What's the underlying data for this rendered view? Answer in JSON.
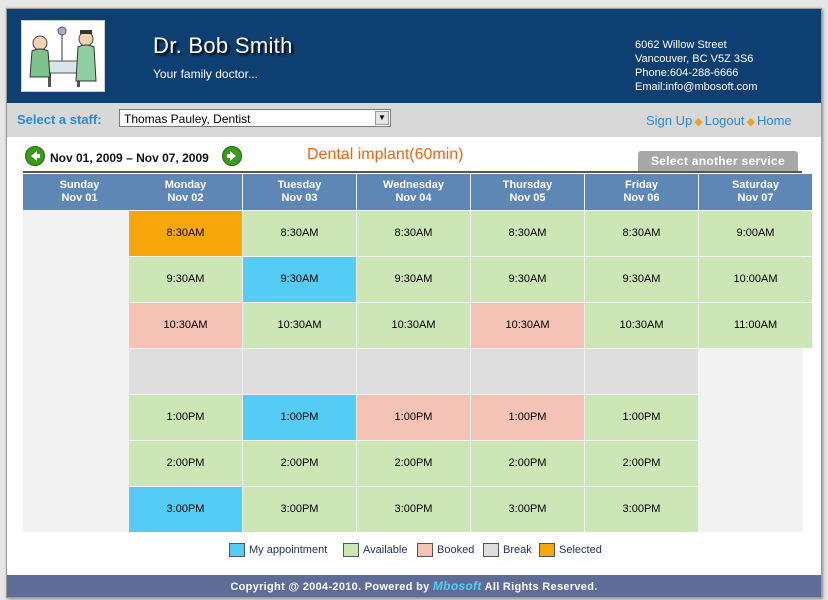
{
  "header": {
    "doctor_name": "Dr. Bob Smith",
    "tagline": "Your family doctor...",
    "address": [
      "6062 Willow Street",
      "Vancouver, BC V5Z 3S6",
      "Phone:604-288-6666",
      "Email:info@mbosoft.com"
    ]
  },
  "staff": {
    "label": "Select a staff:",
    "selected": "Thomas Pauley, Dentist"
  },
  "links": {
    "signup": "Sign Up",
    "logout": "Logout",
    "home": "Home",
    "separator": "◆"
  },
  "week": {
    "range_start": "Nov 01, 2009",
    "dash": "–",
    "range_end": "Nov 07, 2009"
  },
  "service": {
    "title": "Dental implant(60min)",
    "change_button": "Select another service"
  },
  "calendar": {
    "days": [
      {
        "name": "Sunday",
        "date": "Nov 01",
        "slots": []
      },
      {
        "name": "Monday",
        "date": "Nov 02",
        "slots": [
          {
            "time": "8:30AM",
            "status": "selected"
          },
          {
            "time": "9:30AM",
            "status": "available"
          },
          {
            "time": "10:30AM",
            "status": "booked"
          },
          {
            "time": "",
            "status": "break"
          },
          {
            "time": "1:00PM",
            "status": "available"
          },
          {
            "time": "2:00PM",
            "status": "available"
          },
          {
            "time": "3:00PM",
            "status": "mine"
          }
        ]
      },
      {
        "name": "Tuesday",
        "date": "Nov 03",
        "slots": [
          {
            "time": "8:30AM",
            "status": "available"
          },
          {
            "time": "9:30AM",
            "status": "mine"
          },
          {
            "time": "10:30AM",
            "status": "available"
          },
          {
            "time": "",
            "status": "break"
          },
          {
            "time": "1:00PM",
            "status": "mine"
          },
          {
            "time": "2:00PM",
            "status": "available"
          },
          {
            "time": "3:00PM",
            "status": "available"
          }
        ]
      },
      {
        "name": "Wednesday",
        "date": "Nov 04",
        "slots": [
          {
            "time": "8:30AM",
            "status": "available"
          },
          {
            "time": "9:30AM",
            "status": "available"
          },
          {
            "time": "10:30AM",
            "status": "available"
          },
          {
            "time": "",
            "status": "break"
          },
          {
            "time": "1:00PM",
            "status": "booked"
          },
          {
            "time": "2:00PM",
            "status": "available"
          },
          {
            "time": "3:00PM",
            "status": "available"
          }
        ]
      },
      {
        "name": "Thursday",
        "date": "Nov 05",
        "slots": [
          {
            "time": "8:30AM",
            "status": "available"
          },
          {
            "time": "9:30AM",
            "status": "available"
          },
          {
            "time": "10:30AM",
            "status": "booked"
          },
          {
            "time": "",
            "status": "break"
          },
          {
            "time": "1:00PM",
            "status": "booked"
          },
          {
            "time": "2:00PM",
            "status": "available"
          },
          {
            "time": "3:00PM",
            "status": "available"
          }
        ]
      },
      {
        "name": "Friday",
        "date": "Nov 06",
        "slots": [
          {
            "time": "8:30AM",
            "status": "available"
          },
          {
            "time": "9:30AM",
            "status": "available"
          },
          {
            "time": "10:30AM",
            "status": "available"
          },
          {
            "time": "",
            "status": "break"
          },
          {
            "time": "1:00PM",
            "status": "available"
          },
          {
            "time": "2:00PM",
            "status": "available"
          },
          {
            "time": "3:00PM",
            "status": "available"
          }
        ]
      },
      {
        "name": "Saturday",
        "date": "Nov 07",
        "slots": [
          {
            "time": "9:00AM",
            "status": "available"
          },
          {
            "time": "10:00AM",
            "status": "available"
          },
          {
            "time": "11:00AM",
            "status": "available"
          }
        ]
      }
    ]
  },
  "legend": [
    {
      "label": "My appointment",
      "color": "#55ccf5"
    },
    {
      "label": "Available",
      "color": "#cde6b6"
    },
    {
      "label": "Booked",
      "color": "#f5c2b6"
    },
    {
      "label": "Break",
      "color": "#dedede"
    },
    {
      "label": "Selected",
      "color": "#f7a70a"
    }
  ],
  "footer": {
    "prefix": "Copyright @ 2004-2010. Powered by",
    "brand": "Mbosoft",
    "suffix": "All Rights Reserved."
  },
  "colors": {
    "header_bg": "#0e3f73",
    "accent_orange": "#e06a1a",
    "link_blue": "#2a8ad4"
  }
}
